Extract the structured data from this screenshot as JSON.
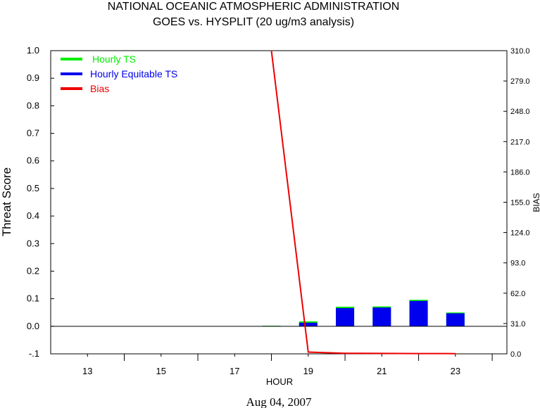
{
  "chart_data": {
    "type": "bar",
    "title_line1": "NATIONAL OCEANIC ATMOSPHERIC ADMINISTRATION",
    "title_line2": "GOES vs. HYSPLIT  (20 ug/m3 analysis)",
    "xlabel": "HOUR",
    "ylabel": "Threat Score",
    "y2label": "BIAS",
    "date_label": "Aug 04, 2007",
    "xlim": [
      12,
      24.4
    ],
    "ylim": [
      -0.1,
      1.0
    ],
    "y2lim": [
      0.0,
      310.0
    ],
    "x_major_ticks": [
      13,
      15,
      17,
      19,
      21,
      23
    ],
    "x_minor_ticks": [
      14,
      16,
      18,
      20,
      22,
      24
    ],
    "x_tick_labels": [
      "13",
      "15",
      "17",
      "19",
      "21",
      "23"
    ],
    "y_ticks": [
      -0.1,
      0.0,
      0.1,
      0.2,
      0.3,
      0.4,
      0.5,
      0.6,
      0.7,
      0.8,
      0.9,
      1.0
    ],
    "y_tick_labels": [
      "-.1",
      "0.0",
      "0.1",
      "0.2",
      "0.3",
      "0.4",
      "0.5",
      "0.6",
      "0.7",
      "0.8",
      "0.9",
      "1.0"
    ],
    "y2_ticks": [
      0.0,
      31.0,
      62.0,
      93.0,
      124.0,
      155.0,
      186.0,
      217.0,
      248.0,
      279.0,
      310.0
    ],
    "y2_tick_labels": [
      "0.0",
      "31.0",
      "62.0",
      "93.0",
      "124.0",
      "155.0",
      "186.0",
      "217.0",
      "248.0",
      "279.0",
      "310.0"
    ],
    "legend_position": "top-left",
    "series": [
      {
        "name": "Hourly TS",
        "color": "#00ee00",
        "x": [
          18,
          19,
          20,
          21,
          22,
          23
        ],
        "values": [
          0.002,
          0.018,
          0.071,
          0.072,
          0.096,
          0.05
        ]
      },
      {
        "name": "Hourly Equitable TS",
        "color": "#0000ee",
        "x": [
          18,
          19,
          20,
          21,
          22,
          23
        ],
        "values": [
          0.001,
          0.013,
          0.066,
          0.068,
          0.092,
          0.047
        ]
      },
      {
        "name": "Bias",
        "color": "#ee0000",
        "axis": "right",
        "x": [
          18,
          19,
          20,
          21,
          22,
          23
        ],
        "values": [
          310.0,
          1.8,
          0.6,
          0.4,
          0.3,
          0.2
        ]
      }
    ]
  }
}
